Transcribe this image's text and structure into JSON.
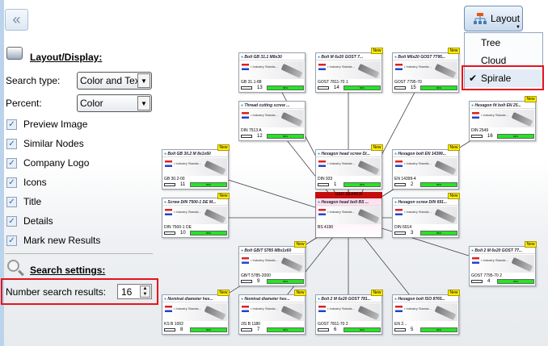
{
  "sidebar": {
    "collapse_icon": "double-chevron-left",
    "layout_section": "Layout/Display:",
    "search_type_label": "Search type:",
    "search_type_value": "Color and Text",
    "percent_label": "Percent:",
    "percent_value": "Color",
    "checkboxes": [
      {
        "label": "Preview Image",
        "checked": true
      },
      {
        "label": "Similar Nodes",
        "checked": true
      },
      {
        "label": "Company Logo",
        "checked": true
      },
      {
        "label": "Icons",
        "checked": true
      },
      {
        "label": "Title",
        "checked": true
      },
      {
        "label": "Details",
        "checked": true
      },
      {
        "label": "Mark new Results",
        "checked": true
      }
    ],
    "search_section": "Search settings:",
    "number_label": "Number search results:",
    "number_value": "16"
  },
  "layout_button": {
    "label": "Layout",
    "icon": "tree-hierarchy-icon"
  },
  "layout_menu": [
    {
      "label": "Tree",
      "checked": false
    },
    {
      "label": "Cloud",
      "checked": false
    },
    {
      "label": "Spirale",
      "checked": true
    }
  ],
  "graph": {
    "center": {
      "header": "GEO SEARCH",
      "title": "Hexagon head bolt BS ...",
      "company": "• Industry Standa...",
      "code": "BS 4190"
    },
    "new_badge": "New",
    "bar_text": "99%",
    "nodes": [
      {
        "title": "Hexagon head screw DI...",
        "code": "DIN 933",
        "rank": "1",
        "new": true
      },
      {
        "title": "Hexagon bolt EN 14399...",
        "code": "EN 14399-4",
        "rank": "2",
        "new": true
      },
      {
        "title": "Hexagon screw DIN 691...",
        "code": "DIN 6914",
        "rank": "3",
        "new": true
      },
      {
        "title": "Bolt 2 M 6x20 GOST 77...",
        "code": "GOST 7795-70 2",
        "rank": "4",
        "new": true
      },
      {
        "title": "Hexagon bolt ISO 8765...",
        "code": "EN 2...",
        "rank": "5",
        "new": true
      },
      {
        "title": "Bolt 2 M 6x20 GOST 781...",
        "code": "GOST 7811-70 2",
        "rank": "6",
        "new": true
      },
      {
        "title": "Nominal diameter hex...",
        "code": "JIS B 1180",
        "rank": "7",
        "new": true
      },
      {
        "title": "Nominal diameter hex...",
        "code": "KS B 1002",
        "rank": "8",
        "new": true
      },
      {
        "title": "Bolt GB/T 5785 M8x1x60",
        "code": "GB/T 5785-2000",
        "rank": "9",
        "new": true
      },
      {
        "title": "Screw DIN 7500-1 DE M...",
        "code": "DIN 7500-1 DE",
        "rank": "10",
        "new": true
      },
      {
        "title": "Bolt GB 30.2 M 8x1x60",
        "code": "GB 30.2-00",
        "rank": "11",
        "new": true
      },
      {
        "title": "Thread cutting screw ...",
        "code": "DIN 7513 A",
        "rank": "12",
        "new": false
      },
      {
        "title": "Bolt GB 31.1 M8x30",
        "code": "GB 31.1-88",
        "rank": "13",
        "new": false
      },
      {
        "title": "Bolt M 6x20 GOST 7...",
        "code": "GOST 7811-70 1",
        "rank": "14",
        "new": true
      },
      {
        "title": "Bolt M6x20 GOST 7795...",
        "code": "GOST 7795-70",
        "rank": "15",
        "new": true
      },
      {
        "title": "Hexagon fit bolt EN 25...",
        "code": "DIN 2549",
        "rank": "16",
        "new": true
      }
    ]
  }
}
